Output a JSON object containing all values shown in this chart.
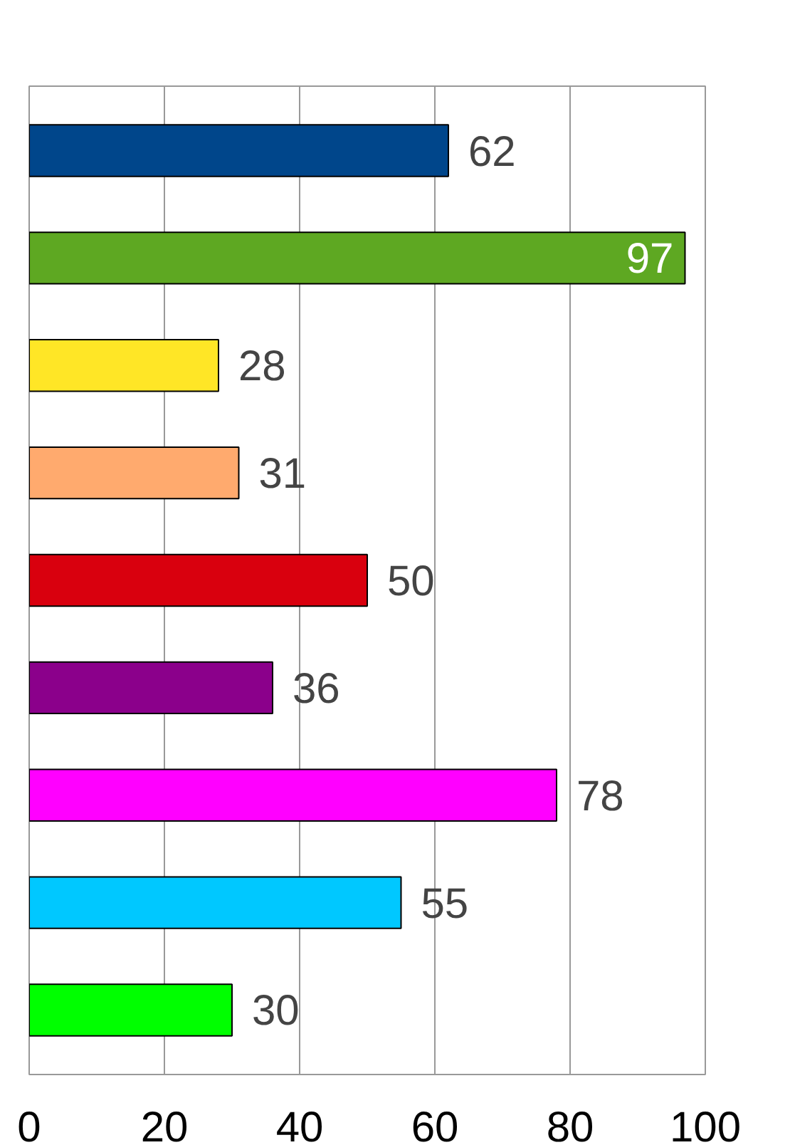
{
  "chart_data": {
    "type": "bar",
    "orientation": "horizontal",
    "categories": [
      null,
      null,
      null,
      null,
      null,
      null,
      null,
      null,
      null
    ],
    "values": [
      62,
      97,
      28,
      31,
      50,
      36,
      78,
      55,
      30
    ],
    "colors": [
      "#00468b",
      "#5ea822",
      "#ffe626",
      "#ffaa6e",
      "#d9000e",
      "#8b008b",
      "#ff00ff",
      "#00c8ff",
      "#00ff00"
    ],
    "xlim": [
      0,
      100
    ],
    "xticks": [
      0,
      20,
      40,
      60,
      80,
      100
    ],
    "grid": "x",
    "data_labels": true
  }
}
